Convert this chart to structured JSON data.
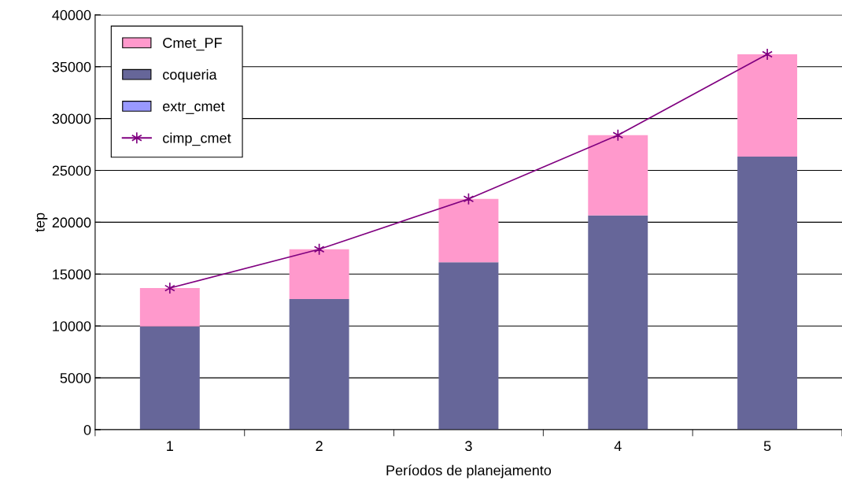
{
  "chart_data": {
    "type": "bar",
    "stacked": true,
    "xlabel": "Períodos de planejamento",
    "ylabel": "tep",
    "categories": [
      "1",
      "2",
      "3",
      "4",
      "5"
    ],
    "series": [
      {
        "name": "extr_cmet",
        "color": "#9999ff",
        "values": [
          0,
          0,
          0,
          0,
          0
        ]
      },
      {
        "name": "coqueria",
        "color": "#666699",
        "values": [
          9950,
          12600,
          16150,
          20650,
          26330
        ]
      },
      {
        "name": "Cmet_PF",
        "color": "#ff99cc",
        "values": [
          3700,
          4800,
          6100,
          7750,
          9870
        ]
      },
      {
        "name": "cimp_cmet",
        "type": "line",
        "color": "#800080",
        "marker": "cross",
        "values": [
          13650,
          17400,
          22250,
          28400,
          36200
        ]
      }
    ],
    "ylim": [
      0,
      40000
    ],
    "yticks": [
      0,
      5000,
      10000,
      15000,
      20000,
      25000,
      30000,
      35000,
      40000
    ],
    "grid": "y",
    "legend": "top left"
  }
}
